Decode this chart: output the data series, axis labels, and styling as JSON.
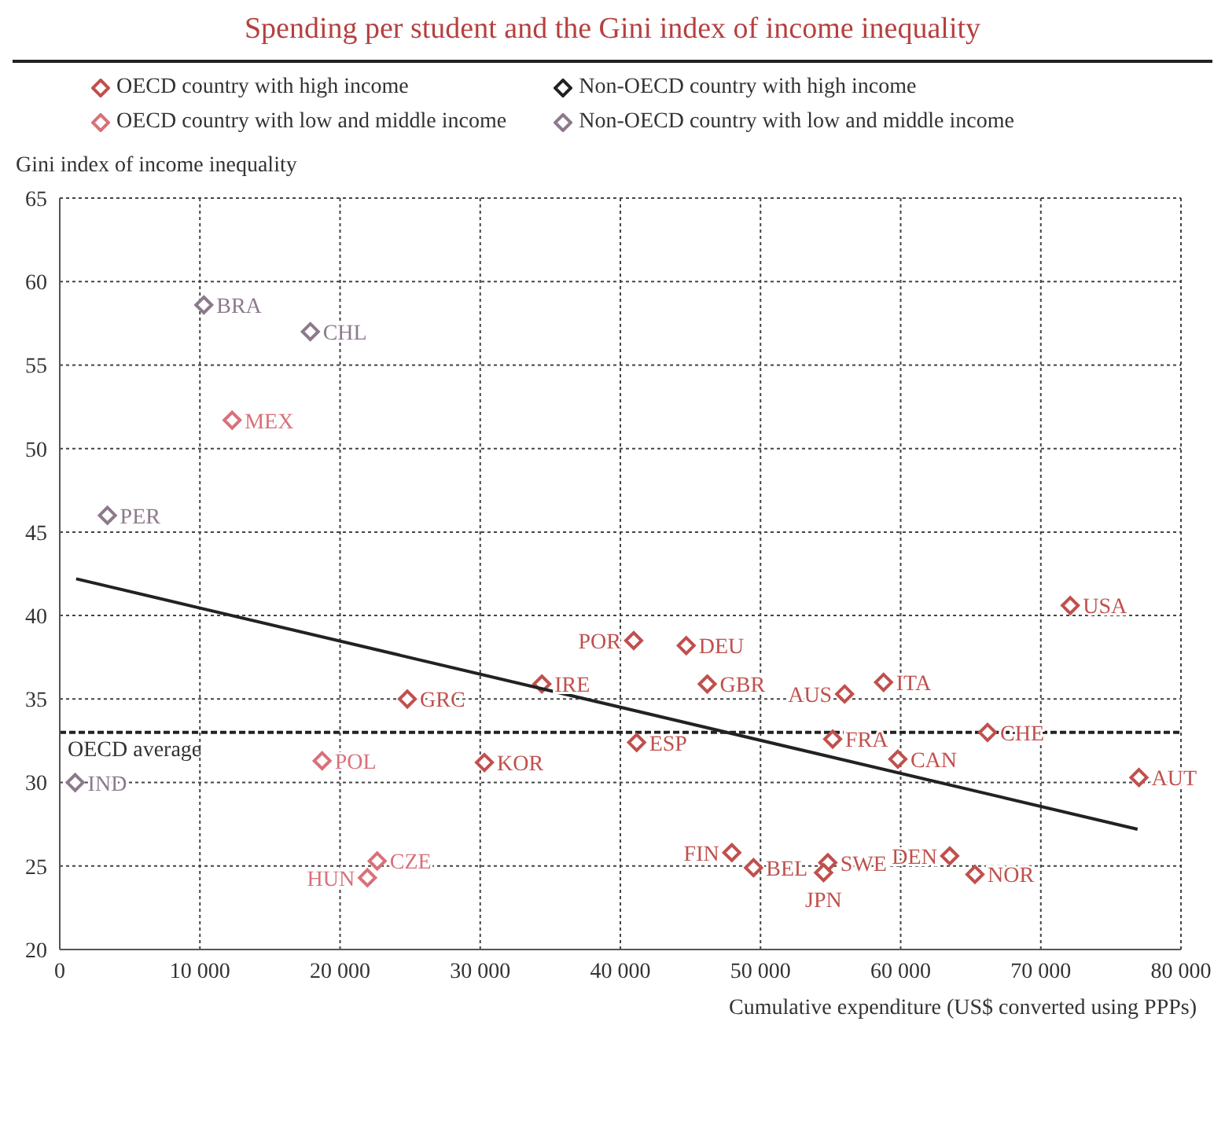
{
  "chart_data": {
    "type": "scatter",
    "title": "Spending per student and the Gini index of income inequality",
    "xlabel": "Cumulative expenditure (US$ converted using PPPs)",
    "ylabel": "Gini index of income inequality",
    "xlim": [
      0,
      80000
    ],
    "xticks": [
      0,
      {
        "value": 10000,
        "label": "10 000"
      },
      {
        "value": 20000,
        "label": "20 000"
      },
      {
        "value": 30000,
        "label": "30 000"
      },
      {
        "value": 40000,
        "label": "40 000"
      },
      {
        "value": 50000,
        "label": "50 000"
      },
      {
        "value": 60000,
        "label": "60 000"
      },
      {
        "value": 70000,
        "label": "70 000"
      },
      {
        "value": 80000,
        "label": "80 000"
      }
    ],
    "ylim": [
      20,
      65
    ],
    "yticks": [
      20,
      25,
      30,
      35,
      40,
      45,
      50,
      55,
      60,
      65
    ],
    "grid": true,
    "legend": "top",
    "marker": "diamond",
    "series": [
      {
        "name": "OECD country with high income",
        "color": "#c0504d",
        "x": [
          24800,
          30300,
          34400,
          40950,
          44700,
          46200,
          41160,
          56000,
          58780,
          55150,
          59800,
          66200,
          72100,
          77000,
          47950,
          49500,
          54800,
          54500,
          63500,
          65300
        ],
        "values": [
          35.0,
          31.2,
          35.9,
          38.5,
          38.2,
          35.9,
          32.4,
          35.3,
          36.0,
          32.6,
          31.4,
          33.0,
          40.6,
          30.3,
          25.8,
          24.9,
          25.2,
          24.6,
          25.6,
          24.5
        ]
      },
      {
        "name": "OECD country with low and middle income",
        "color": "#d9707a",
        "x": [
          12300,
          18720,
          21950,
          22650
        ],
        "values": [
          51.7,
          31.3,
          24.3,
          25.3
        ]
      },
      {
        "name": "Non-OECD country with high income",
        "color": "#222222"
      },
      {
        "name": "Non-OECD country with low and middle income",
        "color": "#8c7a8c",
        "x": [
          10280,
          17880,
          3400,
          1100
        ],
        "values": [
          58.6,
          57.0,
          46.0,
          30.0
        ]
      },
      {
        "type": "line",
        "color": "#222222",
        "x": [
          1170,
          76900
        ],
        "values": [
          42.2,
          27.2
        ],
        "marker": "none"
      }
    ],
    "ref_lines": [
      {
        "axis": "y",
        "value": 33.0,
        "label": "OECD average",
        "color": "#222222",
        "line_style": "dashed"
      }
    ],
    "annotations": [
      {
        "text": "GRC",
        "x": 24800,
        "y": 35.0
      },
      {
        "text": "KOR",
        "x": 30300,
        "y": 31.2
      },
      {
        "text": "IRE",
        "x": 34400,
        "y": 35.9
      },
      {
        "text": "POR",
        "x": 40950,
        "y": 38.5
      },
      {
        "text": "DEU",
        "x": 44700,
        "y": 38.2
      },
      {
        "text": "GBR",
        "x": 46200,
        "y": 35.9
      },
      {
        "text": "ESP",
        "x": 41160,
        "y": 32.4
      },
      {
        "text": "AUS",
        "x": 56000,
        "y": 35.3
      },
      {
        "text": "ITA",
        "x": 58780,
        "y": 36.0
      },
      {
        "text": "FRA",
        "x": 55150,
        "y": 32.6
      },
      {
        "text": "CAN",
        "x": 59800,
        "y": 31.4
      },
      {
        "text": "CHE",
        "x": 66200,
        "y": 33.0
      },
      {
        "text": "USA",
        "x": 72100,
        "y": 40.6
      },
      {
        "text": "AUT",
        "x": 77000,
        "y": 30.3
      },
      {
        "text": "FIN",
        "x": 47950,
        "y": 25.8
      },
      {
        "text": "BEL",
        "x": 49500,
        "y": 24.9
      },
      {
        "text": "SWE",
        "x": 54800,
        "y": 25.2
      },
      {
        "text": "JPN",
        "x": 54500,
        "y": 24.6
      },
      {
        "text": "DEN",
        "x": 63500,
        "y": 25.6
      },
      {
        "text": "NOR",
        "x": 65300,
        "y": 24.5
      },
      {
        "text": "MEX",
        "x": 12300,
        "y": 51.7
      },
      {
        "text": "POL",
        "x": 18720,
        "y": 31.3
      },
      {
        "text": "HUN",
        "x": 21950,
        "y": 24.3
      },
      {
        "text": "CZE",
        "x": 22650,
        "y": 25.3
      },
      {
        "text": "BRA",
        "x": 10280,
        "y": 58.6
      },
      {
        "text": "CHL",
        "x": 17880,
        "y": 57.0
      },
      {
        "text": "PER",
        "x": 3400,
        "y": 46.0
      },
      {
        "text": "IND",
        "x": 1100,
        "y": 30.0
      }
    ]
  }
}
